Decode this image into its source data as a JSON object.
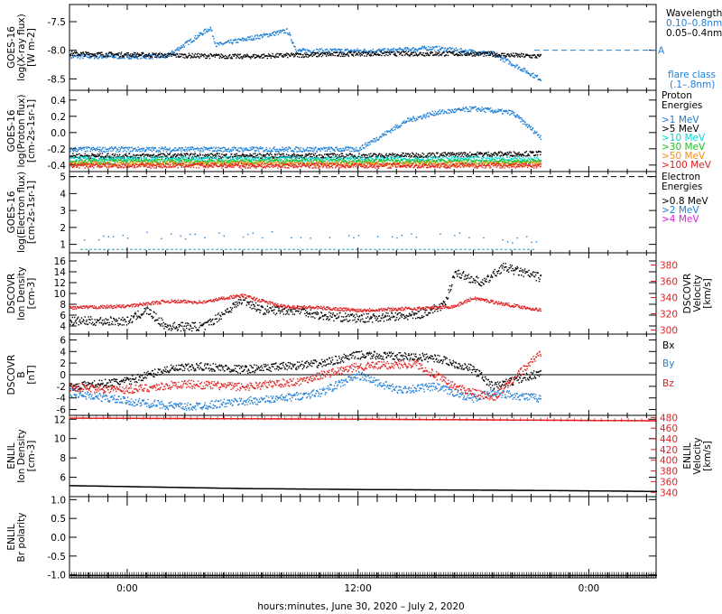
{
  "figure": {
    "xaxis_title": "hours:minutes, June 30, 2020 – July  2, 2020",
    "x_tick_labels": [
      "0:00",
      "12:00",
      "0:00"
    ]
  },
  "colors": {
    "black": "#000000",
    "blue": "#1f7fd6",
    "red": "#e02020",
    "cyan": "#00d8d8",
    "green": "#20c020",
    "orange": "#f09018",
    "magenta": "#e020e0"
  },
  "chart_data": [
    {
      "id": "xray",
      "type": "scatter",
      "ylabel": [
        "GOES-16",
        "log(X-ray flux)",
        "[W m-2]"
      ],
      "yticks": [
        "-7.5",
        "-8.0",
        "-8.5"
      ],
      "ylim": [
        -8.7,
        -7.2
      ],
      "x_range_hours": [
        -3,
        27.5
      ],
      "data_x_range_hours": [
        -3,
        21.5
      ],
      "series": [
        {
          "name": "0.10–0.8nm",
          "color": "blue",
          "level": -8.05,
          "points": [
            [
              2,
              -8.1
            ],
            [
              4.3,
              -7.6
            ],
            [
              4.6,
              -7.9
            ],
            [
              8.3,
              -7.65
            ],
            [
              8.8,
              -8.0
            ],
            [
              13.5,
              -8.0
            ],
            [
              15.8,
              -7.95
            ],
            [
              19,
              -8.05
            ],
            [
              21.5,
              -8.5
            ]
          ]
        },
        {
          "name": "0.05–0.4nm",
          "color": "black",
          "level": -8.05,
          "points": [
            [
              -3,
              -8.05
            ],
            [
              6,
              -8.1
            ],
            [
              12,
              -8.05
            ],
            [
              18,
              -8.05
            ],
            [
              21.5,
              -8.1
            ]
          ]
        }
      ],
      "legend_title": "Wavelength",
      "flare_class": {
        "letter": "A",
        "level": -8.0,
        "label": "flare class",
        "label2": "(.1–.8nm)"
      }
    },
    {
      "id": "proton",
      "type": "scatter",
      "ylabel": [
        "GOES-16",
        "log(Proton flux)",
        "[cm-2s-1sr-1]"
      ],
      "yticks": [
        "0.4",
        "0.2",
        "0.0",
        "-0.2",
        "-0.4"
      ],
      "ylim": [
        -0.48,
        0.52
      ],
      "legend_title": "Proton Energies",
      "series": [
        {
          "name": ">1 MeV",
          "color": "blue",
          "points": [
            [
              -2,
              -0.2
            ],
            [
              12,
              -0.2
            ],
            [
              14.5,
              0.15
            ],
            [
              16,
              0.25
            ],
            [
              18,
              0.3
            ],
            [
              20,
              0.25
            ],
            [
              21.5,
              -0.05
            ]
          ]
        },
        {
          "name": ">5 MeV",
          "color": "black",
          "points": [
            [
              -2,
              -0.28
            ],
            [
              12,
              -0.28
            ],
            [
              21.5,
              -0.25
            ]
          ]
        },
        {
          "name": ">10 MeV",
          "color": "cyan",
          "points": [
            [
              -2,
              -0.32
            ],
            [
              21.5,
              -0.32
            ]
          ]
        },
        {
          "name": ">30 MeV",
          "color": "green",
          "points": [
            [
              -2,
              -0.35
            ],
            [
              21.5,
              -0.35
            ]
          ]
        },
        {
          "name": ">50 MeV",
          "color": "orange",
          "points": [
            [
              -2,
              -0.38
            ],
            [
              21.5,
              -0.38
            ]
          ]
        },
        {
          "name": ">100 MeV",
          "color": "red",
          "points": [
            [
              -2,
              -0.4
            ],
            [
              21.5,
              -0.4
            ]
          ]
        }
      ]
    },
    {
      "id": "electron",
      "type": "scatter",
      "ylabel": [
        "GOES-16",
        "log(Electron flux)",
        "[cm-2s-1sr-1]"
      ],
      "yticks": [
        "5",
        "4",
        "3",
        "2",
        "1"
      ],
      "ylim": [
        0.5,
        5.3
      ],
      "legend_title": "Electron Energies",
      "threshold": 5.0,
      "series": [
        {
          "name": ">0.8 MeV",
          "color": "black",
          "points": []
        },
        {
          "name": ">2 MeV",
          "color": "blue",
          "points": [
            [
              -2,
              1.2
            ],
            [
              0,
              1.6
            ],
            [
              4,
              1.5
            ],
            [
              8,
              1.6
            ],
            [
              12,
              1.4
            ],
            [
              18,
              1.6
            ],
            [
              20,
              1.3
            ]
          ]
        },
        {
          "name": ">4 MeV",
          "color": "magenta",
          "points": []
        }
      ],
      "baseline": 0.7
    },
    {
      "id": "dscovr_density",
      "type": "line",
      "ylabel": [
        "DSCOVR",
        "Ion Density",
        "[cm-3]"
      ],
      "yticks": [
        "16",
        "14",
        "12",
        "10",
        "8",
        "6",
        "4"
      ],
      "ylim": [
        2.5,
        17.5
      ],
      "y2label": [
        "DSCOVR",
        "Velocity",
        "[km/s]"
      ],
      "y2ticks": [
        "380",
        "360",
        "340",
        "320",
        "300"
      ],
      "y2lim": [
        295,
        395
      ],
      "series": [
        {
          "name": "Density",
          "color": "black",
          "points": [
            [
              -3,
              5
            ],
            [
              0,
              5
            ],
            [
              1,
              7
            ],
            [
              2,
              4
            ],
            [
              4,
              4
            ],
            [
              5,
              6.5
            ],
            [
              6,
              9
            ],
            [
              7,
              7
            ],
            [
              9,
              7
            ],
            [
              10,
              6
            ],
            [
              12,
              5.5
            ],
            [
              15,
              6
            ],
            [
              16.5,
              8
            ],
            [
              17,
              14
            ],
            [
              18.5,
              12
            ],
            [
              19.5,
              15
            ],
            [
              21.5,
              13
            ]
          ]
        },
        {
          "name": "Velocity",
          "color": "red",
          "axis": "y2",
          "points": [
            [
              -3,
              328
            ],
            [
              0,
              330
            ],
            [
              2,
              336
            ],
            [
              4,
              335
            ],
            [
              5,
              340
            ],
            [
              6,
              343
            ],
            [
              8,
              330
            ],
            [
              10,
              328
            ],
            [
              12,
              325
            ],
            [
              16,
              328
            ],
            [
              17,
              330
            ],
            [
              18,
              340
            ],
            [
              19.5,
              333
            ],
            [
              21.5,
              325
            ]
          ]
        }
      ]
    },
    {
      "id": "dscovr_b",
      "type": "line",
      "ylabel": [
        "DSCOVR",
        "B",
        "[nT]"
      ],
      "yticks": [
        "6",
        "4",
        "2",
        "0",
        "-2",
        "-4",
        "-6"
      ],
      "ylim": [
        -7,
        7
      ],
      "series": [
        {
          "name": "Bx",
          "color": "black",
          "points": [
            [
              -3,
              -2
            ],
            [
              0,
              -1
            ],
            [
              2,
              1
            ],
            [
              4,
              1.5
            ],
            [
              6,
              1
            ],
            [
              8,
              1.5
            ],
            [
              10,
              2
            ],
            [
              12,
              3.5
            ],
            [
              16,
              3
            ],
            [
              18,
              1
            ],
            [
              19,
              -2
            ],
            [
              21.5,
              0.5
            ]
          ]
        },
        {
          "name": "By",
          "color": "blue",
          "points": [
            [
              -3,
              -3
            ],
            [
              0,
              -4.5
            ],
            [
              3,
              -5.5
            ],
            [
              6,
              -4.5
            ],
            [
              8,
              -4
            ],
            [
              10,
              -3
            ],
            [
              12,
              0
            ],
            [
              14,
              -2.5
            ],
            [
              16,
              -2
            ],
            [
              18,
              -4
            ],
            [
              19,
              -3
            ],
            [
              21.5,
              -4
            ]
          ]
        },
        {
          "name": "Bz",
          "color": "red",
          "points": [
            [
              -3,
              -2
            ],
            [
              0,
              -2.5
            ],
            [
              3,
              -1.5
            ],
            [
              6,
              -2
            ],
            [
              9,
              -1
            ],
            [
              10,
              0
            ],
            [
              12,
              1.5
            ],
            [
              15,
              2
            ],
            [
              17,
              -2
            ],
            [
              19,
              -4
            ],
            [
              21.5,
              4
            ]
          ]
        }
      ],
      "zero_line": true
    },
    {
      "id": "enlil_density",
      "type": "line",
      "ylabel": [
        "ENLIL",
        "Ion Density",
        "[cm-3]"
      ],
      "yticks": [
        "12",
        "10",
        "8",
        "6"
      ],
      "ylim": [
        4,
        12.4
      ],
      "y2label": [
        "ENLIL",
        "Velocity",
        "[km/s]"
      ],
      "y2ticks": [
        "480",
        "460",
        "440",
        "420",
        "400",
        "380",
        "360",
        "340"
      ],
      "y2lim": [
        332,
        484
      ],
      "x_range_hours": [
        -3,
        27.5
      ],
      "series": [
        {
          "name": "Density",
          "color": "black",
          "points": [
            [
              -3,
              5.2
            ],
            [
              6,
              4.9
            ],
            [
              12,
              4.8
            ],
            [
              21.5,
              4.7
            ],
            [
              27.5,
              4.6
            ]
          ]
        },
        {
          "name": "Velocity",
          "color": "red",
          "axis": "y2",
          "points": [
            [
              -3,
              480
            ],
            [
              12,
              478
            ],
            [
              27.5,
              475
            ]
          ]
        }
      ]
    },
    {
      "id": "enlil_br",
      "type": "line",
      "ylabel": [
        "ENLIL",
        "Br polarity"
      ],
      "yticks": [
        "1.0",
        "0.5",
        "0.0",
        "-0.5",
        "-1.0"
      ],
      "ylim": [
        -1.08,
        1.08
      ],
      "x_range_hours": [
        -3,
        27.5
      ],
      "series": [
        {
          "name": "Br",
          "color": "black",
          "points": [
            [
              -3,
              -1.0
            ],
            [
              27.5,
              -1.0
            ]
          ]
        }
      ]
    }
  ],
  "side_labels": {
    "bx": "Bx",
    "by": "By",
    "bz": "Bz"
  }
}
